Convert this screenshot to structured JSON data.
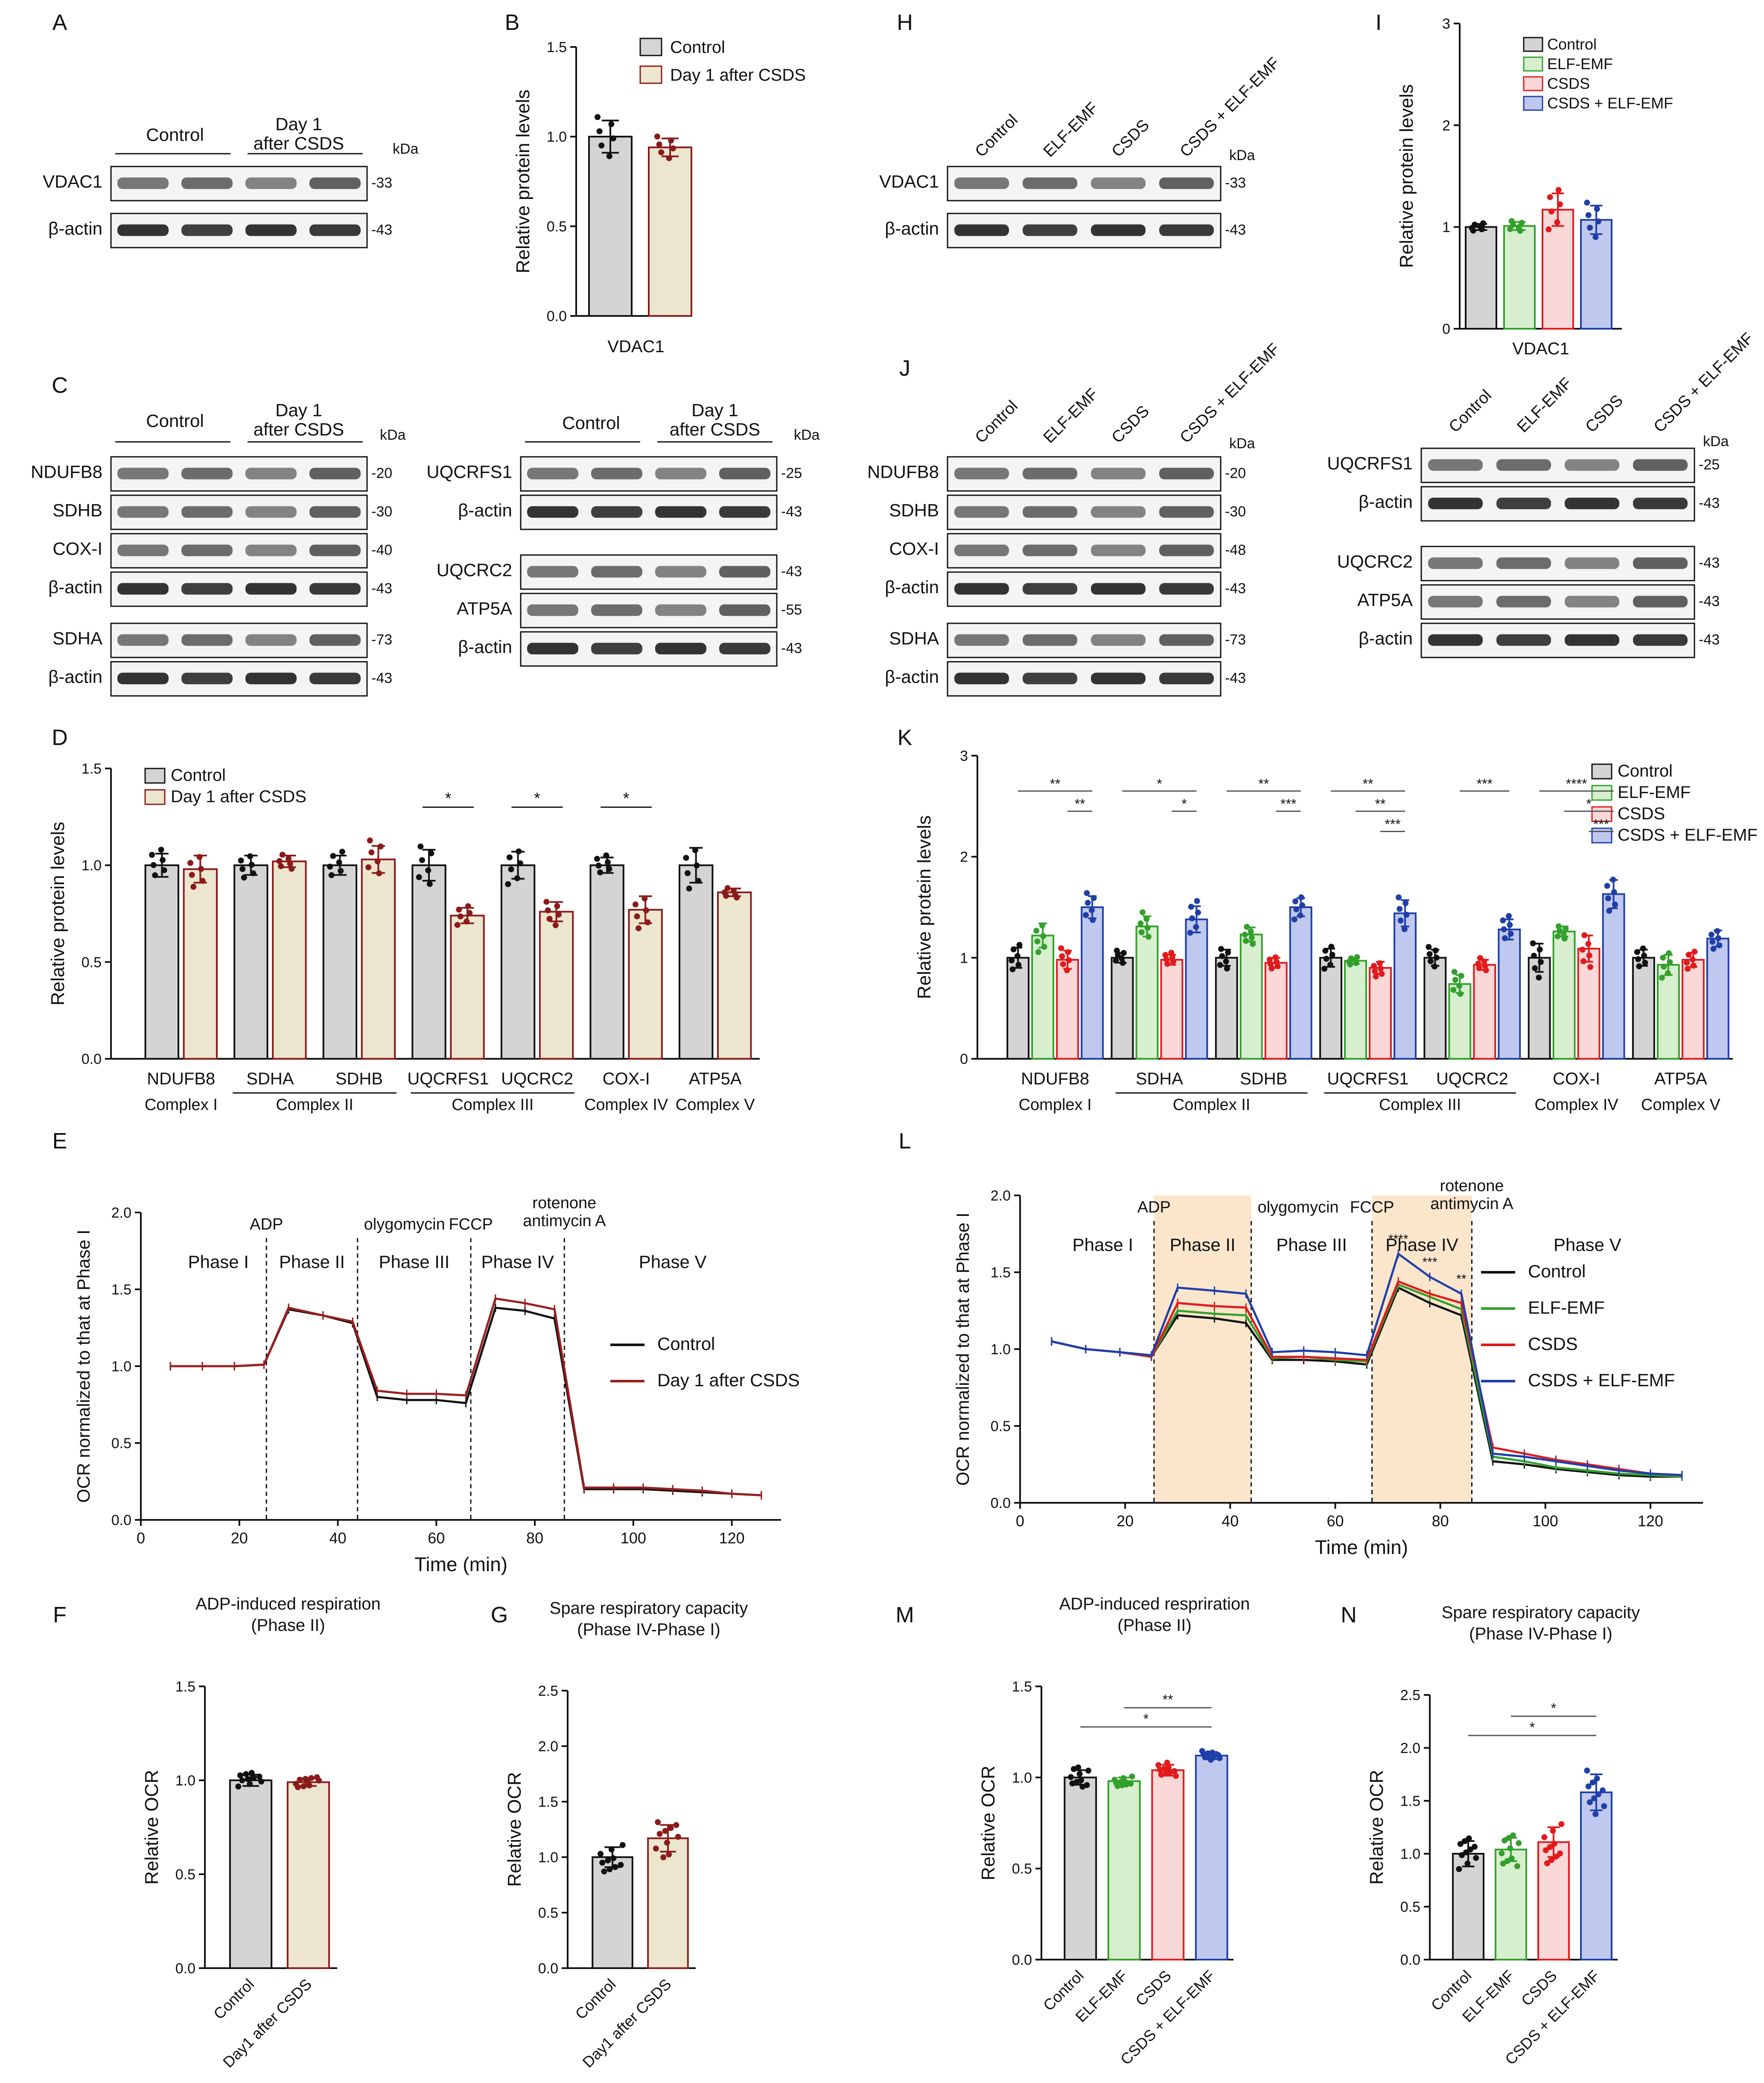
{
  "figure": {
    "panel_letters": [
      "A",
      "B",
      "C",
      "D",
      "E",
      "F",
      "G",
      "H",
      "I",
      "J",
      "K",
      "L",
      "M",
      "N"
    ],
    "colors": {
      "control": "#d4d4d4",
      "csds_day1": "#ece6cf",
      "csds_day1_edge": "#8b1a1a",
      "control_line": "#111111",
      "csds_day1_line": "#9a1f1f",
      "elf": "#d7efcf",
      "elf_edge": "#33a02c",
      "csds": "#fad8d8",
      "csds_edge": "#e31a1c",
      "combo": "#bfc8ef",
      "combo_edge": "#1f3fa8",
      "phase_shade": "#fbe6cc"
    }
  },
  "blots": {
    "A": {
      "groups": [
        {
          "label": "Control",
          "lanes": 2
        },
        {
          "label": "Day 1 after CSDS",
          "lanes": 2
        }
      ],
      "group_lines": [
        [
          "Day 1",
          "after CSDS"
        ]
      ],
      "kda_label": "kDa",
      "rows": [
        {
          "label": "VDAC1",
          "kda": "-33"
        },
        {
          "label": "β-actin",
          "kda": "-43"
        }
      ]
    },
    "C_left": {
      "group_labels": [
        "Control",
        "Day 1",
        "after CSDS"
      ],
      "kda_label": "kDa",
      "rows": [
        {
          "label": "NDUFB8",
          "kda": "-20"
        },
        {
          "label": "SDHB",
          "kda": "-30"
        },
        {
          "label": "COX-I",
          "kda": "-40"
        },
        {
          "label": "β-actin",
          "kda": "-43"
        },
        {
          "label": "SDHA",
          "kda": "-73"
        },
        {
          "label": "β-actin",
          "kda": "-43"
        }
      ]
    },
    "C_right": {
      "group_labels": [
        "Control",
        "Day 1",
        "after CSDS"
      ],
      "kda_label": "kDa",
      "rows": [
        {
          "label": "UQCRFS1",
          "kda": "-25"
        },
        {
          "label": "β-actin",
          "kda": "-43"
        },
        {
          "label": "UQCRC2",
          "kda": "-43"
        },
        {
          "label": "ATP5A",
          "kda": "-55"
        },
        {
          "label": "β-actin",
          "kda": "-43"
        }
      ]
    },
    "H": {
      "lanes": [
        "Control",
        "ELF-EMF",
        "CSDS",
        "CSDS + ELF-EMF"
      ],
      "kda_label": "kDa",
      "rows": [
        {
          "label": "VDAC1",
          "kda": "-33"
        },
        {
          "label": "β-actin",
          "kda": "-43"
        }
      ]
    },
    "J_left": {
      "lanes": [
        "Control",
        "ELF-EMF",
        "CSDS",
        "CSDS + ELF-EMF"
      ],
      "kda_label": "kDa",
      "rows": [
        {
          "label": "NDUFB8",
          "kda": "-20"
        },
        {
          "label": "SDHB",
          "kda": "-30"
        },
        {
          "label": "COX-I",
          "kda": "-48"
        },
        {
          "label": "β-actin",
          "kda": "-43"
        },
        {
          "label": "SDHA",
          "kda": "-73"
        },
        {
          "label": "β-actin",
          "kda": "-43"
        }
      ]
    },
    "J_right": {
      "lanes": [
        "Control",
        "ELF-EMF",
        "CSDS",
        "CSDS + ELF-EMF"
      ],
      "kda_label": "kDa",
      "rows": [
        {
          "label": "UQCRFS1",
          "kda": "-25"
        },
        {
          "label": "β-actin",
          "kda": "-43"
        },
        {
          "label": "UQCRC2",
          "kda": "-43"
        },
        {
          "label": "ATP5A",
          "kda": "-43"
        },
        {
          "label": "β-actin",
          "kda": "-43"
        }
      ]
    }
  },
  "chart_data": [
    {
      "id": "B",
      "type": "bar",
      "ylabel": "Relative protein levels",
      "ylim": [
        0,
        1.5
      ],
      "yticks": [
        "0.0",
        "0.5",
        "1.0",
        "1.5"
      ],
      "xlabel": "VDAC1",
      "legend": [
        "Control",
        "Day 1 after CSDS"
      ],
      "series": [
        {
          "name": "Control",
          "values": [
            1.0
          ],
          "err": [
            0.09
          ]
        },
        {
          "name": "Day 1 after CSDS",
          "values": [
            0.94
          ],
          "err": [
            0.05
          ]
        }
      ]
    },
    {
      "id": "D",
      "type": "bar",
      "ylabel": "Relative protein levels",
      "ylim": [
        0,
        1.5
      ],
      "yticks": [
        "0.0",
        "0.5",
        "1.0",
        "1.5"
      ],
      "categories": [
        "NDUFB8",
        "SDHA",
        "SDHB",
        "UQCRFS1",
        "UQCRC2",
        "COX-I",
        "ATP5A"
      ],
      "complexes": [
        {
          "label": "Complex I",
          "span": [
            0,
            0
          ]
        },
        {
          "label": "Complex II",
          "span": [
            1,
            2
          ]
        },
        {
          "label": "Complex III",
          "span": [
            3,
            4
          ]
        },
        {
          "label": "Complex IV",
          "span": [
            5,
            5
          ]
        },
        {
          "label": "Complex V",
          "span": [
            6,
            6
          ]
        }
      ],
      "legend": [
        "Control",
        "Day 1 after CSDS"
      ],
      "series": [
        {
          "name": "Control",
          "values": [
            1.0,
            1.0,
            1.0,
            1.0,
            1.0,
            1.0,
            1.0
          ],
          "err": [
            0.06,
            0.05,
            0.05,
            0.08,
            0.07,
            0.04,
            0.09
          ]
        },
        {
          "name": "Day 1 after CSDS",
          "values": [
            0.98,
            1.02,
            1.03,
            0.74,
            0.76,
            0.77,
            0.86
          ],
          "err": [
            0.07,
            0.03,
            0.07,
            0.04,
            0.05,
            0.07,
            0.02
          ]
        }
      ],
      "significance": [
        {
          "cat": 3,
          "label": "*"
        },
        {
          "cat": 4,
          "label": "*"
        },
        {
          "cat": 5,
          "label": "*"
        }
      ]
    },
    {
      "id": "E",
      "type": "line",
      "xlabel": "Time (min)",
      "ylabel": "OCR normalized to that at Phase I",
      "xlim": [
        0,
        130
      ],
      "ylim": [
        0,
        2.0
      ],
      "xticks": [
        "0",
        "20",
        "40",
        "60",
        "80",
        "100",
        "120"
      ],
      "yticks": [
        "0.0",
        "0.5",
        "1.0",
        "1.5",
        "2.0"
      ],
      "phases": [
        "Phase I",
        "Phase II",
        "Phase III",
        "Phase IV",
        "Phase V"
      ],
      "injections": [
        {
          "time": 25.5,
          "label": "ADP"
        },
        {
          "time": 44,
          "label": "olygomycin"
        },
        {
          "time": 67,
          "label": "FCCP"
        },
        {
          "time": 86,
          "label": "rotenone antimycin A"
        }
      ],
      "x": [
        6,
        12.5,
        19,
        25,
        30,
        37,
        43,
        48,
        54,
        60,
        66,
        72,
        78,
        84,
        90,
        96,
        102,
        108,
        114,
        120,
        126
      ],
      "series": [
        {
          "name": "Control",
          "values": [
            1.0,
            1.0,
            1.0,
            1.01,
            1.37,
            1.33,
            1.28,
            0.8,
            0.78,
            0.78,
            0.76,
            1.38,
            1.36,
            1.31,
            0.2,
            0.2,
            0.2,
            0.19,
            0.18,
            0.17,
            0.16
          ]
        },
        {
          "name": "Day 1 after CSDS",
          "values": [
            1.0,
            1.0,
            1.0,
            1.01,
            1.38,
            1.33,
            1.29,
            0.84,
            0.82,
            0.82,
            0.81,
            1.44,
            1.41,
            1.37,
            0.21,
            0.21,
            0.21,
            0.2,
            0.19,
            0.17,
            0.16
          ]
        }
      ]
    },
    {
      "id": "F",
      "type": "bar",
      "title": "ADP-induced respiration",
      "subtitle": "(Phase II)",
      "ylabel": "Relative OCR",
      "ylim": [
        0,
        1.5
      ],
      "yticks": [
        "0.0",
        "0.5",
        "1.0",
        "1.5"
      ],
      "categories": [
        "Control",
        "Day1 after CSDS"
      ],
      "values": [
        1.0,
        0.99
      ],
      "err": [
        0.03,
        0.02
      ]
    },
    {
      "id": "G",
      "type": "bar",
      "title": "Spare respiratory capacity",
      "subtitle": "(Phase IV-Phase I)",
      "ylabel": "Relative OCR",
      "ylim": [
        0,
        2.5
      ],
      "yticks": [
        "0.0",
        "0.5",
        "1.0",
        "1.5",
        "2.0",
        "2.5"
      ],
      "categories": [
        "Control",
        "Day1 after CSDS"
      ],
      "values": [
        1.0,
        1.17
      ],
      "err": [
        0.09,
        0.12
      ]
    },
    {
      "id": "I",
      "type": "bar",
      "ylabel": "Relative protein levels",
      "ylim": [
        0,
        3
      ],
      "yticks": [
        "0",
        "1",
        "2",
        "3"
      ],
      "xlabel": "VDAC1",
      "legend": [
        "Control",
        "ELF-EMF",
        "CSDS",
        "CSDS + ELF-EMF"
      ],
      "series": [
        {
          "name": "Control",
          "values": [
            1.0
          ],
          "err": [
            0.03
          ]
        },
        {
          "name": "ELF-EMF",
          "values": [
            1.01
          ],
          "err": [
            0.04
          ]
        },
        {
          "name": "CSDS",
          "values": [
            1.17
          ],
          "err": [
            0.16
          ]
        },
        {
          "name": "CSDS + ELF-EMF",
          "values": [
            1.07
          ],
          "err": [
            0.14
          ]
        }
      ]
    },
    {
      "id": "K",
      "type": "bar",
      "ylabel": "Relative protein levels",
      "ylim": [
        0,
        3
      ],
      "yticks": [
        "0",
        "1",
        "2",
        "3"
      ],
      "categories": [
        "NDUFB8",
        "SDHA",
        "SDHB",
        "UQCRFS1",
        "UQCRC2",
        "COX-I",
        "ATP5A"
      ],
      "complexes": [
        {
          "label": "Complex I",
          "span": [
            0,
            0
          ]
        },
        {
          "label": "Complex II",
          "span": [
            1,
            2
          ]
        },
        {
          "label": "Complex III",
          "span": [
            3,
            4
          ]
        },
        {
          "label": "Complex IV",
          "span": [
            5,
            5
          ]
        },
        {
          "label": "Complex V",
          "span": [
            6,
            6
          ]
        }
      ],
      "legend": [
        "Control",
        "ELF-EMF",
        "CSDS",
        "CSDS + ELF-EMF"
      ],
      "series": [
        {
          "name": "Control",
          "values": [
            1.0,
            1.0,
            1.0,
            1.0,
            1.0,
            1.0,
            1.0
          ],
          "err": [
            0.1,
            0.05,
            0.08,
            0.09,
            0.08,
            0.14,
            0.08
          ]
        },
        {
          "name": "ELF-EMF",
          "values": [
            1.22,
            1.31,
            1.23,
            0.97,
            0.74,
            1.26,
            0.93
          ],
          "err": [
            0.12,
            0.1,
            0.07,
            0.03,
            0.09,
            0.05,
            0.1
          ]
        },
        {
          "name": "CSDS",
          "values": [
            0.98,
            0.98,
            0.95,
            0.9,
            0.93,
            1.09,
            0.98
          ],
          "err": [
            0.09,
            0.05,
            0.05,
            0.06,
            0.05,
            0.13,
            0.07
          ]
        },
        {
          "name": "CSDS + ELF-EMF",
          "values": [
            1.5,
            1.38,
            1.5,
            1.44,
            1.28,
            1.63,
            1.19
          ],
          "err": [
            0.11,
            0.13,
            0.09,
            0.13,
            0.1,
            0.14,
            0.08
          ]
        }
      ],
      "significance": [
        {
          "cat": 0,
          "from": 0,
          "to": 3,
          "label": "**",
          "level": 0
        },
        {
          "cat": 0,
          "from": 2,
          "to": 3,
          "label": "**",
          "level": 1
        },
        {
          "cat": 1,
          "from": 0,
          "to": 3,
          "label": "*",
          "level": 0
        },
        {
          "cat": 1,
          "from": 2,
          "to": 3,
          "label": "*",
          "level": 1
        },
        {
          "cat": 2,
          "from": 0,
          "to": 3,
          "label": "**",
          "level": 0
        },
        {
          "cat": 2,
          "from": 2,
          "to": 3,
          "label": "***",
          "level": 1
        },
        {
          "cat": 3,
          "from": 0,
          "to": 3,
          "label": "**",
          "level": 0
        },
        {
          "cat": 3,
          "from": 1,
          "to": 3,
          "label": "**",
          "level": 1
        },
        {
          "cat": 3,
          "from": 2,
          "to": 3,
          "label": "***",
          "level": 2
        },
        {
          "cat": 4,
          "from": 1,
          "to": 3,
          "label": "***",
          "level": 0
        },
        {
          "cat": 5,
          "from": 0,
          "to": 3,
          "label": "****",
          "level": 0
        },
        {
          "cat": 5,
          "from": 1,
          "to": 3,
          "label": "*",
          "level": 1
        },
        {
          "cat": 5,
          "from": 2,
          "to": 3,
          "label": "***",
          "level": 2
        }
      ]
    },
    {
      "id": "L",
      "type": "line",
      "xlabel": "Time (min)",
      "ylabel": "OCR normalized to that at Phase I",
      "xlim": [
        0,
        130
      ],
      "ylim": [
        0,
        2.0
      ],
      "xticks": [
        "0",
        "20",
        "40",
        "60",
        "80",
        "100",
        "120"
      ],
      "yticks": [
        "0.0",
        "0.5",
        "1.0",
        "1.5",
        "2.0"
      ],
      "phases": [
        "Phase I",
        "Phase II",
        "Phase III",
        "Phase IV",
        "Phase V"
      ],
      "shaded_phases": [
        [
          25.5,
          44
        ],
        [
          67,
          86
        ]
      ],
      "injections": [
        {
          "time": 25.5,
          "label": "ADP"
        },
        {
          "time": 44,
          "label": "olygomycin"
        },
        {
          "time": 67,
          "label": "FCCP"
        },
        {
          "time": 86,
          "label": "rotenone antimycin A"
        }
      ],
      "x": [
        6,
        12.5,
        19,
        25,
        30,
        37,
        43,
        48,
        54,
        60,
        66,
        72,
        78,
        84,
        90,
        96,
        102,
        108,
        114,
        120,
        126
      ],
      "series": [
        {
          "name": "Control",
          "values": [
            1.05,
            1.0,
            0.98,
            0.95,
            1.22,
            1.2,
            1.17,
            0.93,
            0.93,
            0.92,
            0.9,
            1.4,
            1.3,
            1.22,
            0.27,
            0.25,
            0.22,
            0.2,
            0.18,
            0.17,
            0.17
          ]
        },
        {
          "name": "ELF-EMF",
          "values": [
            1.05,
            1.0,
            0.98,
            0.95,
            1.25,
            1.23,
            1.22,
            0.94,
            0.95,
            0.93,
            0.92,
            1.42,
            1.34,
            1.26,
            0.3,
            0.27,
            0.23,
            0.21,
            0.19,
            0.18,
            0.17
          ]
        },
        {
          "name": "CSDS",
          "values": [
            1.05,
            1.0,
            0.98,
            0.95,
            1.3,
            1.28,
            1.27,
            0.95,
            0.95,
            0.94,
            0.93,
            1.44,
            1.36,
            1.3,
            0.36,
            0.32,
            0.28,
            0.25,
            0.22,
            0.19,
            0.18
          ]
        },
        {
          "name": "CSDS + ELF-EMF",
          "values": [
            1.05,
            1.0,
            0.98,
            0.96,
            1.4,
            1.38,
            1.36,
            0.98,
            0.99,
            0.98,
            0.96,
            1.62,
            1.47,
            1.36,
            0.32,
            0.3,
            0.27,
            0.24,
            0.21,
            0.19,
            0.18
          ]
        }
      ],
      "annotations": [
        {
          "x": 72,
          "label": "****"
        },
        {
          "x": 78,
          "label": "***"
        },
        {
          "x": 84,
          "label": "**"
        }
      ]
    },
    {
      "id": "M",
      "type": "bar",
      "title": "ADP-induced respriration",
      "subtitle": "(Phase II)",
      "ylabel": "Relative OCR",
      "ylim": [
        0,
        1.5
      ],
      "yticks": [
        "0.0",
        "0.5",
        "1.0",
        "1.5"
      ],
      "categories": [
        "Control",
        "ELF-EMF",
        "CSDS",
        "CSDS + ELF-EMF"
      ],
      "values": [
        1.0,
        0.98,
        1.04,
        1.12
      ],
      "err": [
        0.04,
        0.02,
        0.03,
        0.02
      ],
      "significance": [
        {
          "from": 0,
          "to": 3,
          "label": "*",
          "level": 1
        },
        {
          "from": 1,
          "to": 3,
          "label": "**",
          "level": 0
        }
      ]
    },
    {
      "id": "N",
      "type": "bar",
      "title": "Spare respiratory capacity",
      "subtitle": "(Phase IV-Phase I)",
      "ylabel": "Relative OCR",
      "ylim": [
        0,
        2.5
      ],
      "yticks": [
        "0.0",
        "0.5",
        "1.0",
        "1.5",
        "2.0",
        "2.5"
      ],
      "categories": [
        "Control",
        "ELF-EMF",
        "CSDS",
        "CSDS + ELF-EMF"
      ],
      "values": [
        1.0,
        1.04,
        1.11,
        1.58
      ],
      "err": [
        0.12,
        0.11,
        0.14,
        0.17
      ],
      "significance": [
        {
          "from": 0,
          "to": 3,
          "label": "*",
          "level": 1
        },
        {
          "from": 1,
          "to": 3,
          "label": "*",
          "level": 0
        }
      ]
    }
  ]
}
